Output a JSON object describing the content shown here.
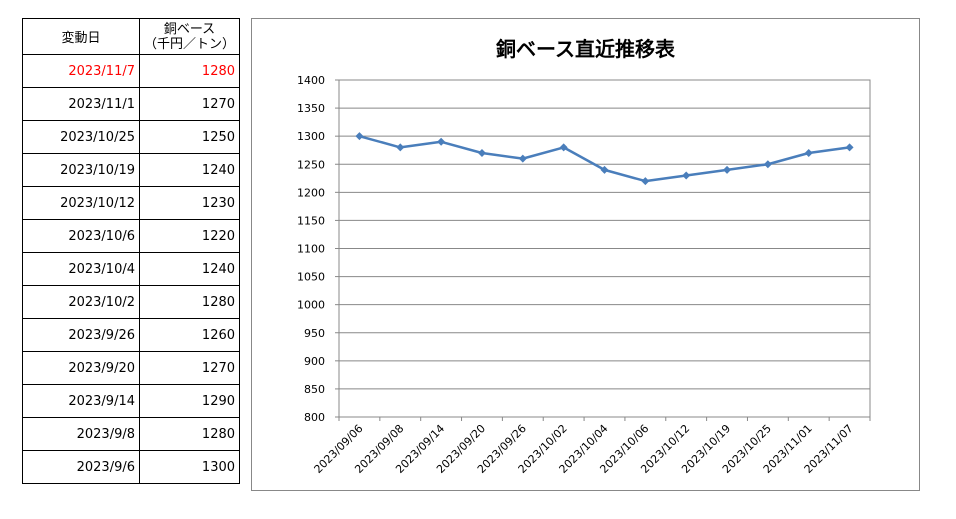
{
  "table": {
    "header": {
      "date": "変動日",
      "price_line1": "銅ベース",
      "price_line2": "（千円／トン）"
    },
    "rows": [
      {
        "date": "2023/11/7",
        "price": "1280"
      },
      {
        "date": "2023/11/1",
        "price": "1270"
      },
      {
        "date": "2023/10/25",
        "price": "1250"
      },
      {
        "date": "2023/10/19",
        "price": "1240"
      },
      {
        "date": "2023/10/12",
        "price": "1230"
      },
      {
        "date": "2023/10/6",
        "price": "1220"
      },
      {
        "date": "2023/10/4",
        "price": "1240"
      },
      {
        "date": "2023/10/2",
        "price": "1280"
      },
      {
        "date": "2023/9/26",
        "price": "1260"
      },
      {
        "date": "2023/9/20",
        "price": "1270"
      },
      {
        "date": "2023/9/14",
        "price": "1290"
      },
      {
        "date": "2023/9/8",
        "price": "1280"
      },
      {
        "date": "2023/9/6",
        "price": "1300"
      }
    ],
    "highlight_color": "#ff0000"
  },
  "chart_data": {
    "type": "line",
    "title": "銅ベース直近推移表",
    "xlabel": "",
    "ylabel": "",
    "categories": [
      "2023/09/06",
      "2023/09/08",
      "2023/09/14",
      "2023/09/20",
      "2023/09/26",
      "2023/10/02",
      "2023/10/04",
      "2023/10/06",
      "2023/10/12",
      "2023/10/19",
      "2023/10/25",
      "2023/11/01",
      "2023/11/07"
    ],
    "series": [
      {
        "values": [
          1300,
          1280,
          1290,
          1270,
          1260,
          1280,
          1240,
          1220,
          1230,
          1240,
          1250,
          1270,
          1280
        ],
        "color": "#4a7ebb"
      }
    ],
    "ylim": [
      800,
      1400
    ],
    "yticks": [
      800,
      850,
      900,
      950,
      1000,
      1050,
      1100,
      1150,
      1200,
      1250,
      1300,
      1350,
      1400
    ],
    "grid": true,
    "legend": "none",
    "marker": "diamond"
  }
}
